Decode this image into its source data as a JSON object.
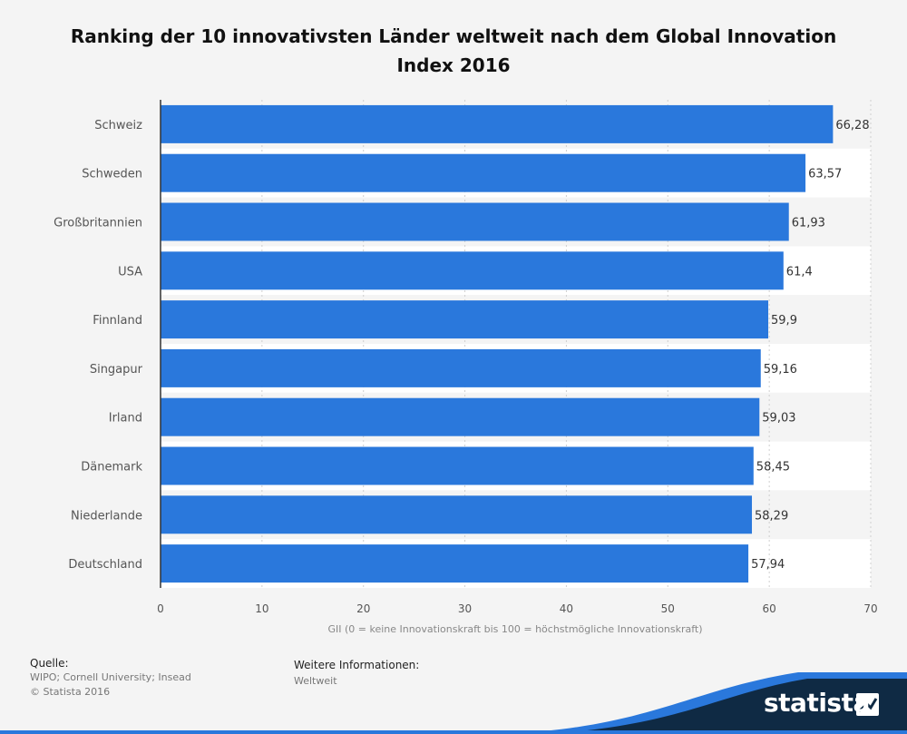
{
  "chart_data": {
    "type": "bar",
    "orientation": "horizontal",
    "title": "Ranking der 10 innovativsten Länder weltweit nach dem Global Innovation Index 2016",
    "xlabel": "GII (0 = keine Innovationskraft bis 100 = höchstmögliche Innovationskraft)",
    "ylabel": "",
    "categories": [
      "Schweiz",
      "Schweden",
      "Großbritannien",
      "USA",
      "Finnland",
      "Singapur",
      "Irland",
      "Dänemark",
      "Niederlande",
      "Deutschland"
    ],
    "values": [
      66.28,
      63.57,
      61.93,
      61.4,
      59.9,
      59.16,
      59.03,
      58.45,
      58.29,
      57.94
    ],
    "value_labels": [
      "66,28",
      "63,57",
      "61,93",
      "61,4",
      "59,9",
      "59,16",
      "59,03",
      "58,45",
      "58,29",
      "57,94"
    ],
    "xlim": [
      0,
      70
    ],
    "xticks": [
      0,
      10,
      20,
      30,
      40,
      50,
      60,
      70
    ],
    "grid": true,
    "bar_color": "#2a78dc"
  },
  "footer": {
    "source_heading": "Quelle:",
    "source_text": "WIPO; Cornell University; Insead",
    "copyright": "© Statista 2016",
    "info_heading": "Weitere Informationen:",
    "info_text": "Weltweit"
  },
  "brand": {
    "name": "statista",
    "color": "#0f2a44",
    "accent": "#2a78dc"
  }
}
